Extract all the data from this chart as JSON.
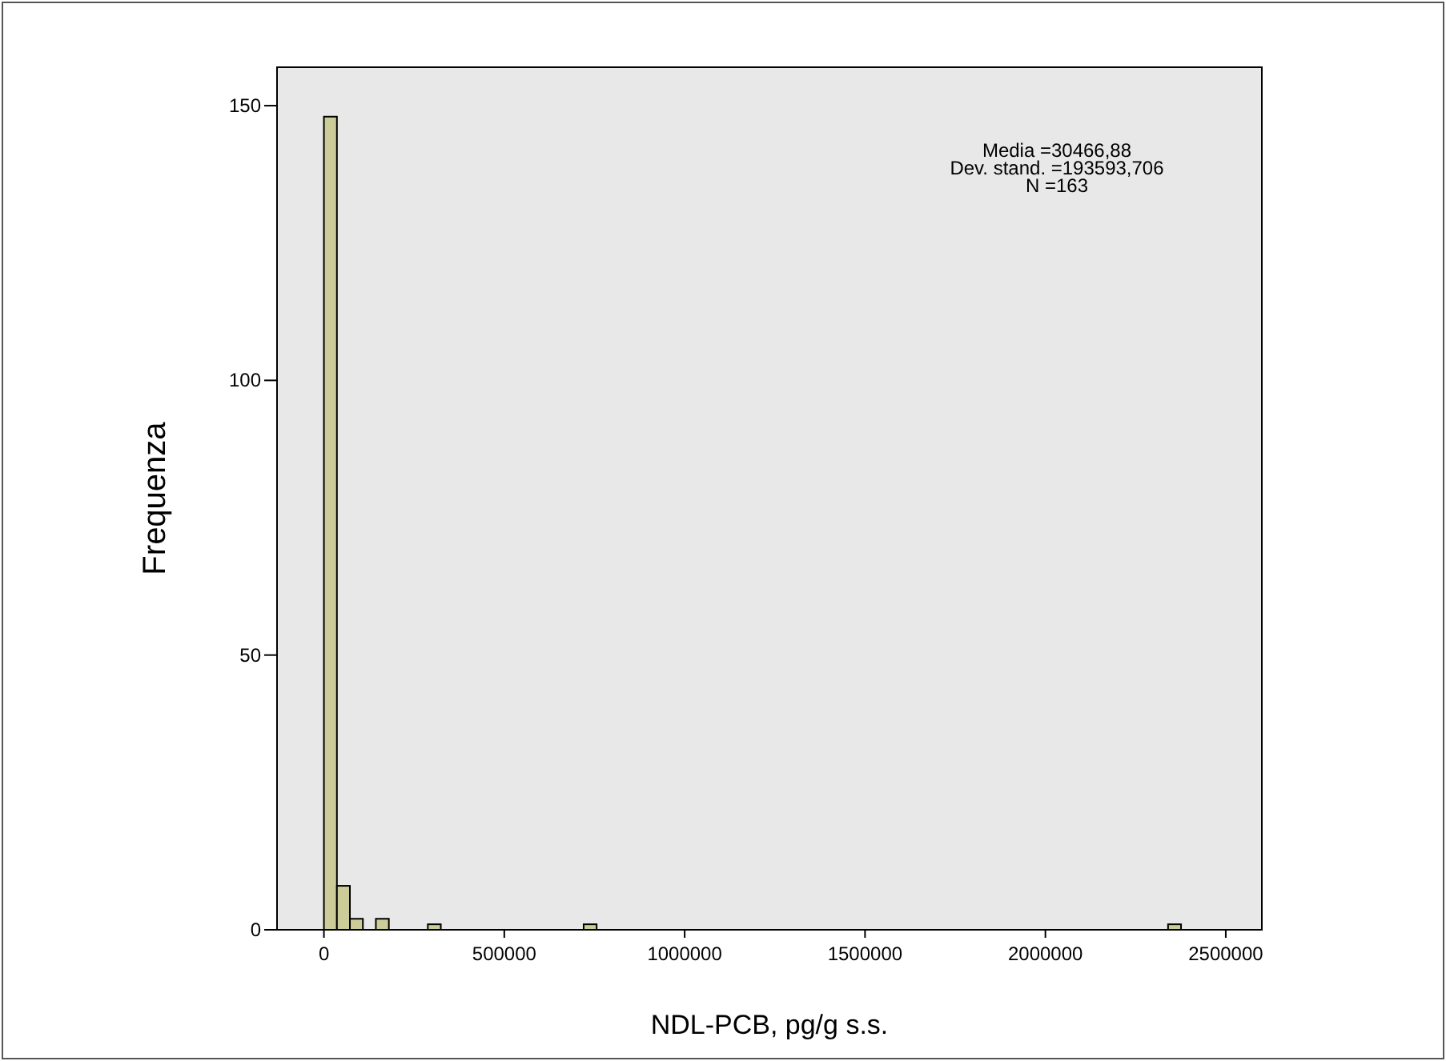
{
  "chart_data": {
    "type": "histogram",
    "xlabel": "NDL-PCB, pg/g s.s.",
    "ylabel": "Frequenza",
    "annotations": [
      "Media =30466,88",
      "Dev. stand. =193593,706",
      "N =163"
    ],
    "bins": [
      0,
      36000,
      72000,
      108000,
      144000,
      180000,
      216000,
      252000,
      288000,
      324000,
      360000,
      396000,
      432000,
      468000,
      504000,
      540000,
      576000,
      612000,
      648000,
      684000,
      720000,
      756000,
      792000,
      828000,
      864000,
      900000,
      936000,
      972000,
      1008000,
      1044000,
      1080000,
      1116000,
      1152000,
      1188000,
      1224000,
      1260000,
      1296000,
      1332000,
      1368000,
      1404000,
      1440000,
      1476000,
      1512000,
      1548000,
      1584000,
      1620000,
      1656000,
      1692000,
      1728000,
      1764000,
      1800000,
      1836000,
      1872000,
      1908000,
      1944000,
      1980000,
      2016000,
      2052000,
      2088000,
      2124000,
      2160000,
      2196000,
      2232000,
      2268000,
      2304000,
      2340000,
      2376000
    ],
    "values": [
      148,
      8,
      2,
      0,
      2,
      0,
      0,
      0,
      1,
      0,
      0,
      0,
      0,
      0,
      0,
      0,
      0,
      0,
      0,
      0,
      1,
      0,
      0,
      0,
      0,
      0,
      0,
      0,
      0,
      0,
      0,
      0,
      0,
      0,
      0,
      0,
      0,
      0,
      0,
      0,
      0,
      0,
      0,
      0,
      0,
      0,
      0,
      0,
      0,
      0,
      0,
      0,
      0,
      0,
      0,
      0,
      0,
      0,
      0,
      0,
      0,
      0,
      0,
      0,
      0,
      1
    ],
    "color": "#cccc99",
    "xlim": [
      -130000,
      2600000
    ],
    "xticks": [
      0,
      500000,
      1000000,
      1500000,
      2000000,
      2500000
    ],
    "ylim": [
      0,
      157
    ],
    "yticks": [
      0,
      50,
      100,
      150
    ],
    "grid": false
  }
}
